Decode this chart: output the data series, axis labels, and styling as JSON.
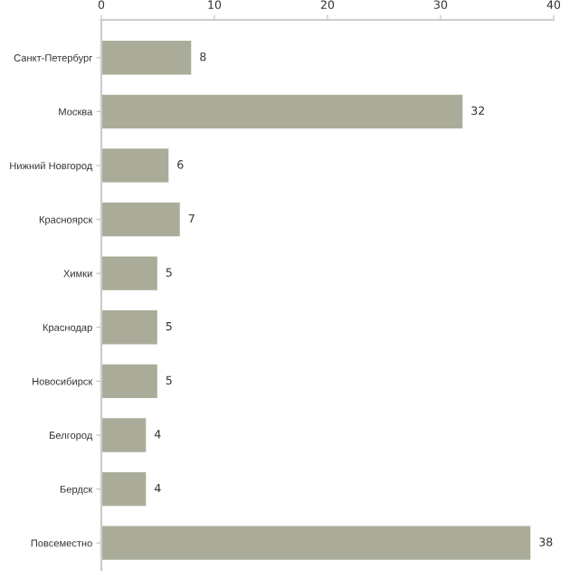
{
  "chart_data": {
    "type": "bar",
    "orientation": "horizontal",
    "categories": [
      "Санкт-Петербург",
      "Москва",
      "Нижний Новгород",
      "Красноярск",
      "Химки",
      "Краснодар",
      "Новосибирск",
      "Белгород",
      "Бердск",
      "Повсеместно"
    ],
    "values": [
      8,
      32,
      6,
      7,
      5,
      5,
      5,
      4,
      4,
      38
    ],
    "color": "#aaac99",
    "xlim": [
      0,
      40
    ],
    "xticks": [
      0,
      10,
      20,
      30,
      40
    ],
    "data_labels": true,
    "grid": false,
    "legend": false
  }
}
